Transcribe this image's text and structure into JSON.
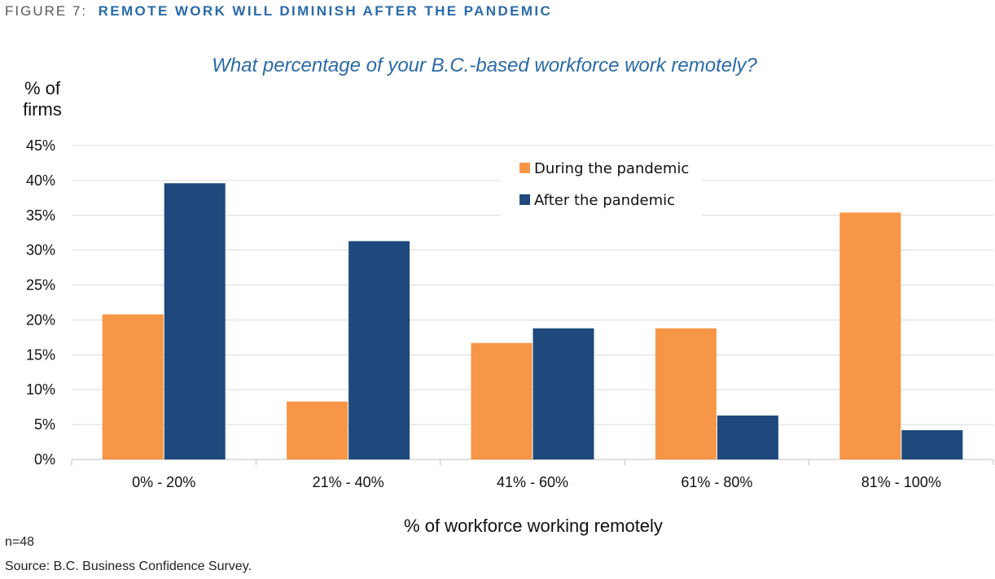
{
  "header": {
    "label": "FIGURE 7:",
    "title": "REMOTE WORK WILL DIMINISH AFTER THE PANDEMIC"
  },
  "chart_data": {
    "type": "bar",
    "title": "What percentage of your B.C.-based workforce work remotely?",
    "ylabel_line1": "% of",
    "ylabel_line2": "firms",
    "xlabel": "% of workforce working remotely",
    "categories": [
      "0% - 20%",
      "21% - 40%",
      "41% - 60%",
      "61% - 80%",
      "81% - 100%"
    ],
    "series": [
      {
        "name": "During the pandemic",
        "color": "#f79646",
        "values": [
          20.8,
          8.3,
          16.7,
          18.8,
          35.4
        ]
      },
      {
        "name": "After the pandemic",
        "color": "#1f497d",
        "values": [
          39.6,
          31.3,
          18.8,
          6.3,
          4.2
        ]
      }
    ],
    "ylim": [
      0,
      45
    ],
    "yticks": [
      0,
      5,
      10,
      15,
      20,
      25,
      30,
      35,
      40,
      45
    ],
    "ytick_labels": [
      "0%",
      "5%",
      "10%",
      "15%",
      "20%",
      "25%",
      "30%",
      "35%",
      "40%",
      "45%"
    ],
    "grid": true,
    "legend_position": "top-center"
  },
  "footer": {
    "n": "n=48",
    "source": "Source:  B.C. Business Confidence Survey."
  }
}
